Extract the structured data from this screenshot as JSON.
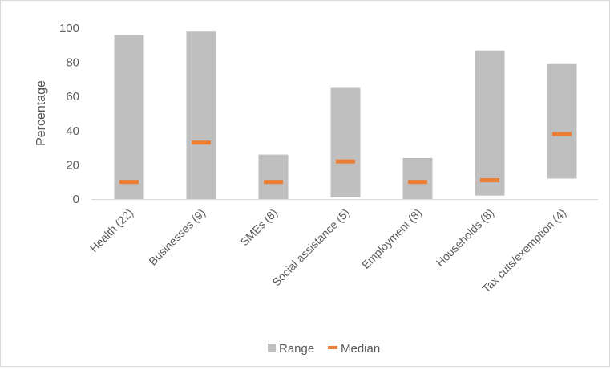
{
  "chart_data": {
    "type": "bar",
    "title": "",
    "xlabel": "",
    "ylabel": "Percentage",
    "ylim": [
      0,
      100
    ],
    "yticks": [
      0,
      20,
      40,
      60,
      80,
      100
    ],
    "grid": false,
    "legend_position": "bottom",
    "categories": [
      "Health (22)",
      "Businesses (9)",
      "SMEs (8)",
      "Social assistance (5)",
      "Employment (8)",
      "Households (8)",
      "Tax cuts/exemption (4)"
    ],
    "series": [
      {
        "name": "Range",
        "kind": "floating-bar",
        "low": [
          0,
          0,
          0,
          1,
          0,
          2,
          12
        ],
        "high": [
          96,
          98,
          26,
          65,
          24,
          87,
          79
        ],
        "color": "#bfbfbf"
      },
      {
        "name": "Median",
        "kind": "marker",
        "values": [
          10,
          33,
          10,
          22,
          10,
          11,
          38
        ],
        "color": "#ed7d31"
      }
    ]
  }
}
